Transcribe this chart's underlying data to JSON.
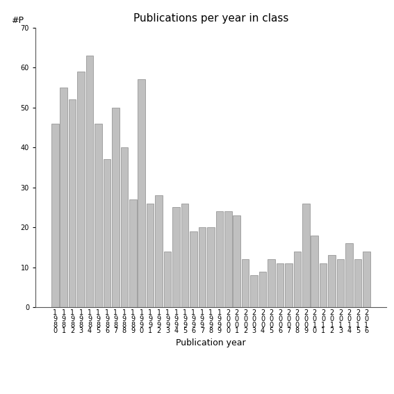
{
  "title": "Publications per year in class",
  "xlabel": "Publication year",
  "ylabel": "#P",
  "years": [
    1980,
    1981,
    1982,
    1983,
    1984,
    1985,
    1986,
    1987,
    1988,
    1989,
    1990,
    1991,
    1992,
    1993,
    1994,
    1995,
    1996,
    1997,
    1998,
    1999,
    2000,
    2001,
    2002,
    2003,
    2004,
    2005,
    2006,
    2007,
    2008,
    2009,
    2010,
    2011,
    2012,
    2013,
    2014,
    2015,
    2016
  ],
  "values": [
    46,
    55,
    52,
    59,
    63,
    46,
    37,
    50,
    40,
    27,
    57,
    26,
    28,
    14,
    25,
    26,
    19,
    20,
    20,
    24,
    24,
    23,
    12,
    8,
    9,
    12,
    11,
    11,
    14,
    26,
    18,
    11,
    13,
    12,
    16,
    12,
    14
  ],
  "bar_color": "#c0c0c0",
  "bar_edge_color": "#888888",
  "ylim": [
    0,
    70
  ],
  "yticks": [
    0,
    10,
    20,
    30,
    40,
    50,
    60,
    70
  ],
  "background_color": "#ffffff",
  "title_fontsize": 11,
  "axis_label_fontsize": 9,
  "tick_fontsize": 7,
  "bar_width": 0.85
}
